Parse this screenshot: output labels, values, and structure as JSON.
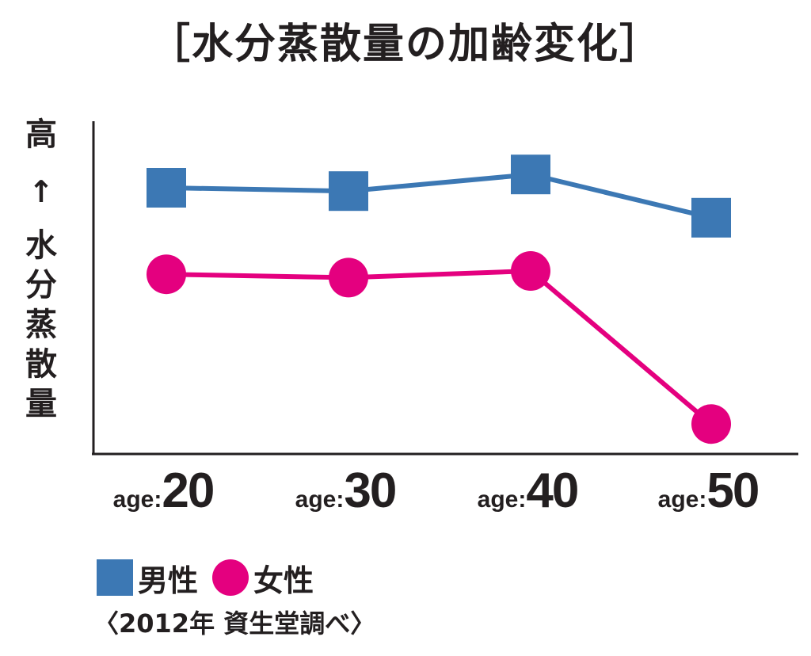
{
  "colors": {
    "male": "#3c78b4",
    "female": "#e4007f",
    "axis": "#231f20",
    "text": "#231f20"
  },
  "chart_data": {
    "type": "line",
    "title": "［水分蒸散量の加齢変化］",
    "ylabel_chars": [
      "高",
      "↑",
      "水",
      "分",
      "蒸",
      "散",
      "量"
    ],
    "categories": [
      "20",
      "30",
      "40",
      "50"
    ],
    "category_prefix": "age:",
    "ylim": [
      0,
      100
    ],
    "grid": false,
    "legend_position": "bottom-left",
    "series": [
      {
        "name": "男性",
        "marker": "square",
        "color": "#3c78b4",
        "values": [
          80,
          79,
          84,
          71
        ]
      },
      {
        "name": "女性",
        "marker": "circle",
        "color": "#e4007f",
        "values": [
          54,
          53,
          55,
          9
        ]
      }
    ],
    "source": "〈2012年  資生堂調べ〉"
  }
}
